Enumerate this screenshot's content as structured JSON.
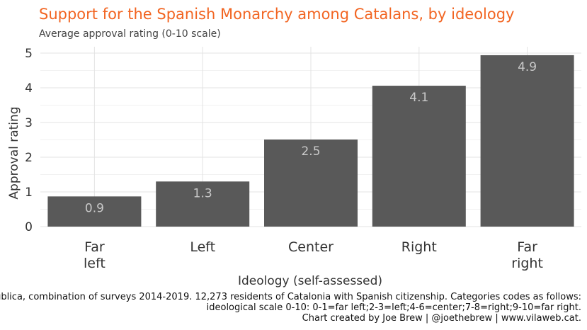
{
  "chart_data": {
    "type": "bar",
    "title": "Support for the Spanish Monarchy among Catalans, by ideology",
    "subtitle": "Average approval rating (0-10 scale)",
    "xlabel": "Ideology (self-assessed)",
    "ylabel": "Approval rating",
    "categories": [
      "Far left",
      "Left",
      "Center",
      "Right",
      "Far right"
    ],
    "category_lines": [
      [
        "Far",
        "left"
      ],
      [
        "Left"
      ],
      [
        "Center"
      ],
      [
        "Right"
      ],
      [
        "Far",
        "right"
      ]
    ],
    "values": [
      0.87,
      1.3,
      2.51,
      4.06,
      4.94
    ],
    "value_labels": [
      "0.9",
      "1.3",
      "2.5",
      "4.1",
      "4.9"
    ],
    "ylim": [
      0,
      5.2
    ],
    "yticks": [
      0,
      1,
      2,
      3,
      4,
      5
    ],
    "grid": true,
    "bar_color": "#595959",
    "title_color": "#f26522",
    "caption_lines": [
      "Data from Centre d'Estudis d'Opinió, Enquesta sobre context polític a Catalunya, Omnibus, and Baròmetre d'Opinió Pública, combination of surveys 2014-2019. 12,273 residents of Catalonia with Spanish citizenship. Categories codes as follows:",
      "ideological scale 0-10: 0-1=far left;2-3=left;4-6=center;7-8=right;9-10=far right.",
      "Chart created by Joe Brew | @joethebrew | www.vilaweb.cat."
    ]
  }
}
